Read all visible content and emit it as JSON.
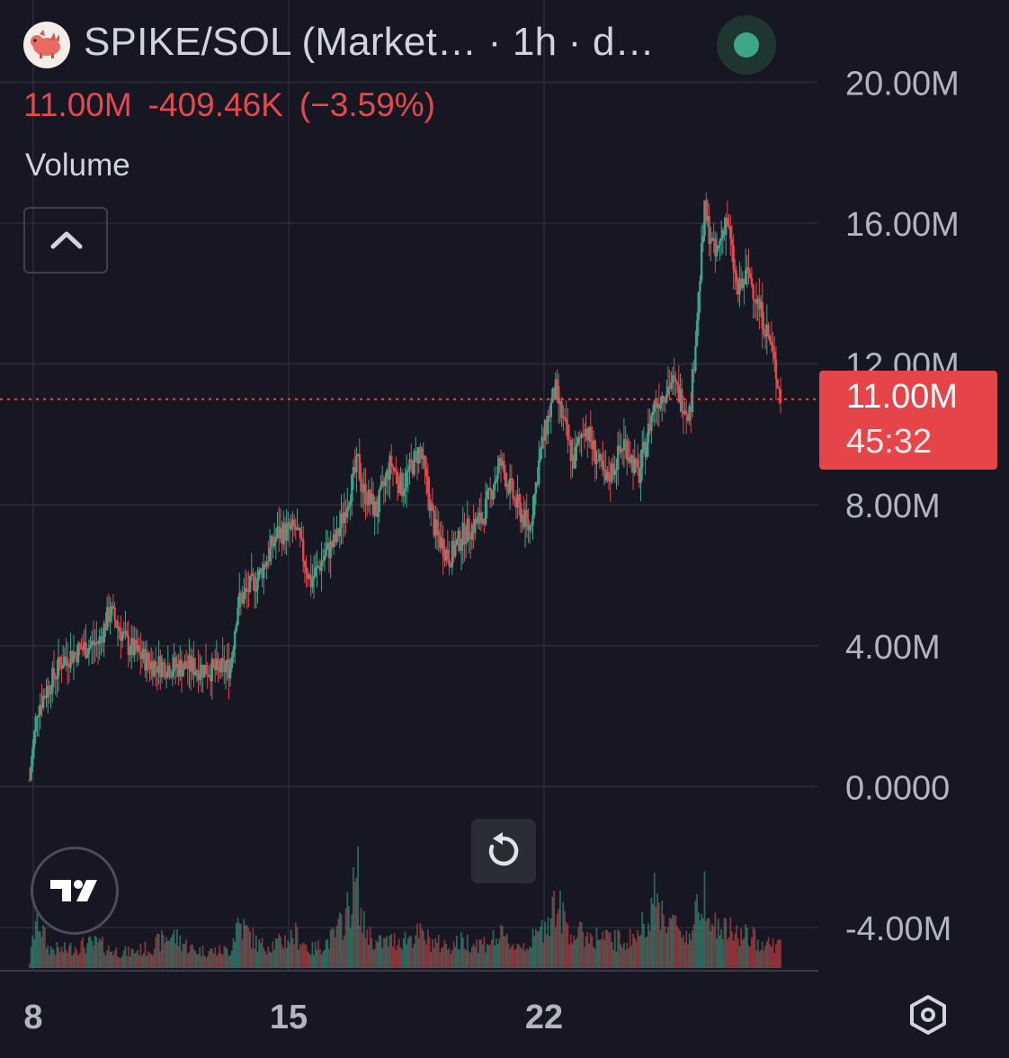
{
  "header": {
    "title": "SPIKE/SOL (Market…  · 1h · d…",
    "last_price": "11.00M",
    "change_abs": "-409.46K",
    "change_pct": "(−3.59%)",
    "status_color": "#3fa587",
    "logo_icon": "spike-dog-logo"
  },
  "volume_label": "Volume",
  "price_tag": {
    "price": "11.00M",
    "countdown": "45:32"
  },
  "controls": {
    "collapse_icon": "chevron-up-icon",
    "reset_icon": "reset-rotate-icon",
    "settings_icon": "hexagon-settings-icon",
    "brand_icon": "tradingview-logo"
  },
  "colors": {
    "up": "#3fa58a",
    "down": "#e5484d",
    "background": "#161722",
    "grid": "#2a2c38"
  },
  "chart_data": {
    "type": "line",
    "title": "",
    "xlabel": "",
    "ylabel": "",
    "ylim": [
      -5.2,
      20.8
    ],
    "y_unit": "M",
    "y_ticks": [
      "20.00M",
      "16.00M",
      "12.00M",
      "8.00M",
      "4.00M",
      "0.0000",
      "-4.00M"
    ],
    "x_ticks": [
      "8",
      "15",
      "22"
    ],
    "x_tick_positions_day": [
      8,
      15,
      22
    ],
    "xlim_day": [
      7.9,
      28.5
    ],
    "current_price": 11.0,
    "series": [
      {
        "values_x_day": [
          7.9,
          8.1,
          8.4,
          8.8,
          9.3,
          9.8,
          10.1,
          10.6,
          11.2,
          11.8,
          12.4,
          13.0,
          13.4,
          13.6,
          14.2,
          14.7,
          15.2,
          15.6,
          16.0,
          16.3,
          16.6,
          16.9,
          17.0,
          17.4,
          17.8,
          18.1,
          18.6,
          19.0,
          19.4,
          19.8,
          20.3,
          20.8,
          21.2,
          21.6,
          21.9,
          22.3,
          22.8,
          23.1,
          23.7,
          24.2,
          24.6,
          25.0,
          25.5,
          26.0,
          26.4,
          26.7,
          27.0,
          27.3,
          27.6,
          27.9,
          28.2,
          28.5
        ],
        "values": [
          0.2,
          2.2,
          2.8,
          3.6,
          3.9,
          4.1,
          5.0,
          4.0,
          3.5,
          3.4,
          3.4,
          3.3,
          3.4,
          5.2,
          6.0,
          7.2,
          7.3,
          5.8,
          6.6,
          7.0,
          8.1,
          9.2,
          8.5,
          7.8,
          9.2,
          8.5,
          9.6,
          7.3,
          6.5,
          7.2,
          7.6,
          9.2,
          8.1,
          7.3,
          9.5,
          11.3,
          9.2,
          10.3,
          8.6,
          9.8,
          8.8,
          10.8,
          11.5,
          10.6,
          16.3,
          15.0,
          16.2,
          14.0,
          14.6,
          13.6,
          12.6,
          11.0
        ]
      }
    ],
    "volume_relative": [
      0.05,
      0.5,
      0.18,
      0.16,
      0.2,
      0.22,
      0.16,
      0.14,
      0.18,
      0.3,
      0.16,
      0.15,
      0.16,
      0.42,
      0.2,
      0.22,
      0.3,
      0.16,
      0.22,
      0.3,
      0.5,
      0.8,
      0.4,
      0.22,
      0.24,
      0.26,
      0.3,
      0.22,
      0.2,
      0.24,
      0.22,
      0.28,
      0.2,
      0.22,
      0.32,
      0.58,
      0.3,
      0.3,
      0.26,
      0.24,
      0.3,
      0.62,
      0.4,
      0.28,
      0.74,
      0.36,
      0.34,
      0.3,
      0.28,
      0.24,
      0.22,
      0.2
    ]
  }
}
